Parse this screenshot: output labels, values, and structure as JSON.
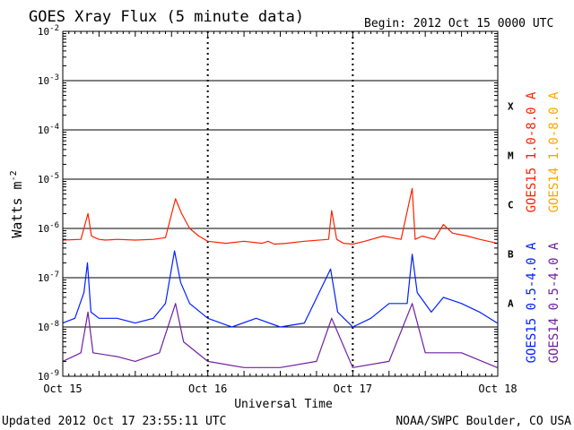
{
  "chart_data": {
    "type": "line",
    "title": "GOES Xray Flux (5 minute data)",
    "begin_label": "Begin:  2012 Oct 15 0000 UTC",
    "xlabel": "Universal Time",
    "ylabel_main": "Watts m",
    "ylabel_sup": "-2",
    "x_ticks": [
      "Oct 15",
      "Oct 16",
      "Oct 17",
      "Oct 18"
    ],
    "xlim": [
      "2012-10-15T00:00Z",
      "2012-10-18T00:00Z"
    ],
    "y_scale": "log",
    "ylim": [
      1e-09,
      0.01
    ],
    "y_ticks": [
      {
        "base": "10",
        "exp": "-9"
      },
      {
        "base": "10",
        "exp": "-8"
      },
      {
        "base": "10",
        "exp": "-7"
      },
      {
        "base": "10",
        "exp": "-6"
      },
      {
        "base": "10",
        "exp": "-5"
      },
      {
        "base": "10",
        "exp": "-4"
      },
      {
        "base": "10",
        "exp": "-3"
      },
      {
        "base": "10",
        "exp": "-2"
      }
    ],
    "flare_classes": [
      "A",
      "B",
      "C",
      "M",
      "X"
    ],
    "grid": true,
    "footer_left": "Updated 2012 Oct 17 23:55:11 UTC",
    "footer_right": "NOAA/SWPC Boulder, CO USA",
    "series": [
      {
        "name": "GOES15 1.0-8.0 A",
        "color": "#ff2000",
        "x": [
          "2012-10-15T00:00Z",
          "2012-10-15T03:00Z",
          "2012-10-15T04:10Z",
          "2012-10-15T04:45Z",
          "2012-10-15T05:20Z",
          "2012-10-15T06:00Z",
          "2012-10-15T07:00Z",
          "2012-10-15T09:00Z",
          "2012-10-15T12:00Z",
          "2012-10-15T15:00Z",
          "2012-10-15T17:00Z",
          "2012-10-15T18:40Z",
          "2012-10-15T19:40Z",
          "2012-10-15T21:00Z",
          "2012-10-15T22:30Z",
          "2012-10-16T00:00Z",
          "2012-10-16T03:00Z",
          "2012-10-16T06:00Z",
          "2012-10-16T09:00Z",
          "2012-10-16T10:00Z",
          "2012-10-16T11:00Z",
          "2012-10-16T13:00Z",
          "2012-10-16T16:00Z",
          "2012-10-16T20:00Z",
          "2012-10-16T20:30Z",
          "2012-10-16T21:20Z",
          "2012-10-16T22:30Z",
          "2012-10-17T00:00Z",
          "2012-10-17T02:00Z",
          "2012-10-17T05:00Z",
          "2012-10-17T08:00Z",
          "2012-10-17T09:50Z",
          "2012-10-17T10:20Z",
          "2012-10-17T11:30Z",
          "2012-10-17T13:30Z",
          "2012-10-17T15:00Z",
          "2012-10-17T16:30Z",
          "2012-10-17T19:00Z",
          "2012-10-17T21:00Z",
          "2012-10-17T23:55Z"
        ],
        "y": [
          5.8e-07,
          6e-07,
          2e-06,
          7e-07,
          6.5e-07,
          6e-07,
          5.8e-07,
          6e-07,
          5.8e-07,
          6e-07,
          6.5e-07,
          4e-06,
          2e-06,
          1e-06,
          7e-07,
          5.5e-07,
          5e-07,
          5.5e-07,
          5e-07,
          5.5e-07,
          4.8e-07,
          5e-07,
          5.5e-07,
          6e-07,
          2.3e-06,
          6e-07,
          5e-07,
          4.8e-07,
          5.5e-07,
          7e-07,
          6e-07,
          6.5e-06,
          6e-07,
          7e-07,
          6e-07,
          1.2e-06,
          8e-07,
          7e-07,
          6e-07,
          5e-07
        ]
      },
      {
        "name": "GOES14 1.0-8.0 A",
        "color": "#ffa500",
        "x": [],
        "y": []
      },
      {
        "name": "GOES15 0.5-4.0 A",
        "color": "#0020ff",
        "x": [
          "2012-10-15T00:00Z",
          "2012-10-15T02:00Z",
          "2012-10-15T03:30Z",
          "2012-10-15T04:05Z",
          "2012-10-15T04:40Z",
          "2012-10-15T06:00Z",
          "2012-10-15T09:00Z",
          "2012-10-15T12:00Z",
          "2012-10-15T15:00Z",
          "2012-10-15T17:00Z",
          "2012-10-15T18:30Z",
          "2012-10-15T19:30Z",
          "2012-10-15T21:00Z",
          "2012-10-16T00:00Z",
          "2012-10-16T04:00Z",
          "2012-10-16T08:00Z",
          "2012-10-16T12:00Z",
          "2012-10-16T16:00Z",
          "2012-10-16T20:20Z",
          "2012-10-16T21:30Z",
          "2012-10-17T00:00Z",
          "2012-10-17T03:00Z",
          "2012-10-17T06:00Z",
          "2012-10-17T09:00Z",
          "2012-10-17T09:50Z",
          "2012-10-17T10:40Z",
          "2012-10-17T13:00Z",
          "2012-10-17T15:00Z",
          "2012-10-17T18:00Z",
          "2012-10-17T21:00Z",
          "2012-10-17T23:55Z"
        ],
        "y": [
          1.2e-08,
          1.5e-08,
          5e-08,
          2e-07,
          2e-08,
          1.5e-08,
          1.5e-08,
          1.2e-08,
          1.5e-08,
          3e-08,
          3.5e-07,
          8e-08,
          3e-08,
          1.5e-08,
          1e-08,
          1.5e-08,
          1e-08,
          1.2e-08,
          1.5e-07,
          2e-08,
          1e-08,
          1.5e-08,
          3e-08,
          3e-08,
          3e-07,
          5e-08,
          2e-08,
          4e-08,
          3e-08,
          2e-08,
          1.2e-08
        ]
      },
      {
        "name": "GOES14 0.5-4.0 A",
        "color": "#7020a0",
        "x": [
          "2012-10-15T00:00Z",
          "2012-10-15T03:00Z",
          "2012-10-15T04:10Z",
          "2012-10-15T05:00Z",
          "2012-10-15T09:00Z",
          "2012-10-15T12:00Z",
          "2012-10-15T16:00Z",
          "2012-10-15T18:40Z",
          "2012-10-15T20:00Z",
          "2012-10-16T00:00Z",
          "2012-10-16T06:00Z",
          "2012-10-16T12:00Z",
          "2012-10-16T18:00Z",
          "2012-10-16T20:30Z",
          "2012-10-17T00:00Z",
          "2012-10-17T06:00Z",
          "2012-10-17T09:50Z",
          "2012-10-17T12:00Z",
          "2012-10-17T18:00Z",
          "2012-10-17T23:55Z"
        ],
        "y": [
          2e-09,
          3e-09,
          2e-08,
          3e-09,
          2.5e-09,
          2e-09,
          3e-09,
          3e-08,
          5e-09,
          2e-09,
          1.5e-09,
          1.5e-09,
          2e-09,
          1.5e-08,
          1.5e-09,
          2e-09,
          3e-08,
          3e-09,
          3e-09,
          1.5e-09
        ]
      }
    ]
  }
}
